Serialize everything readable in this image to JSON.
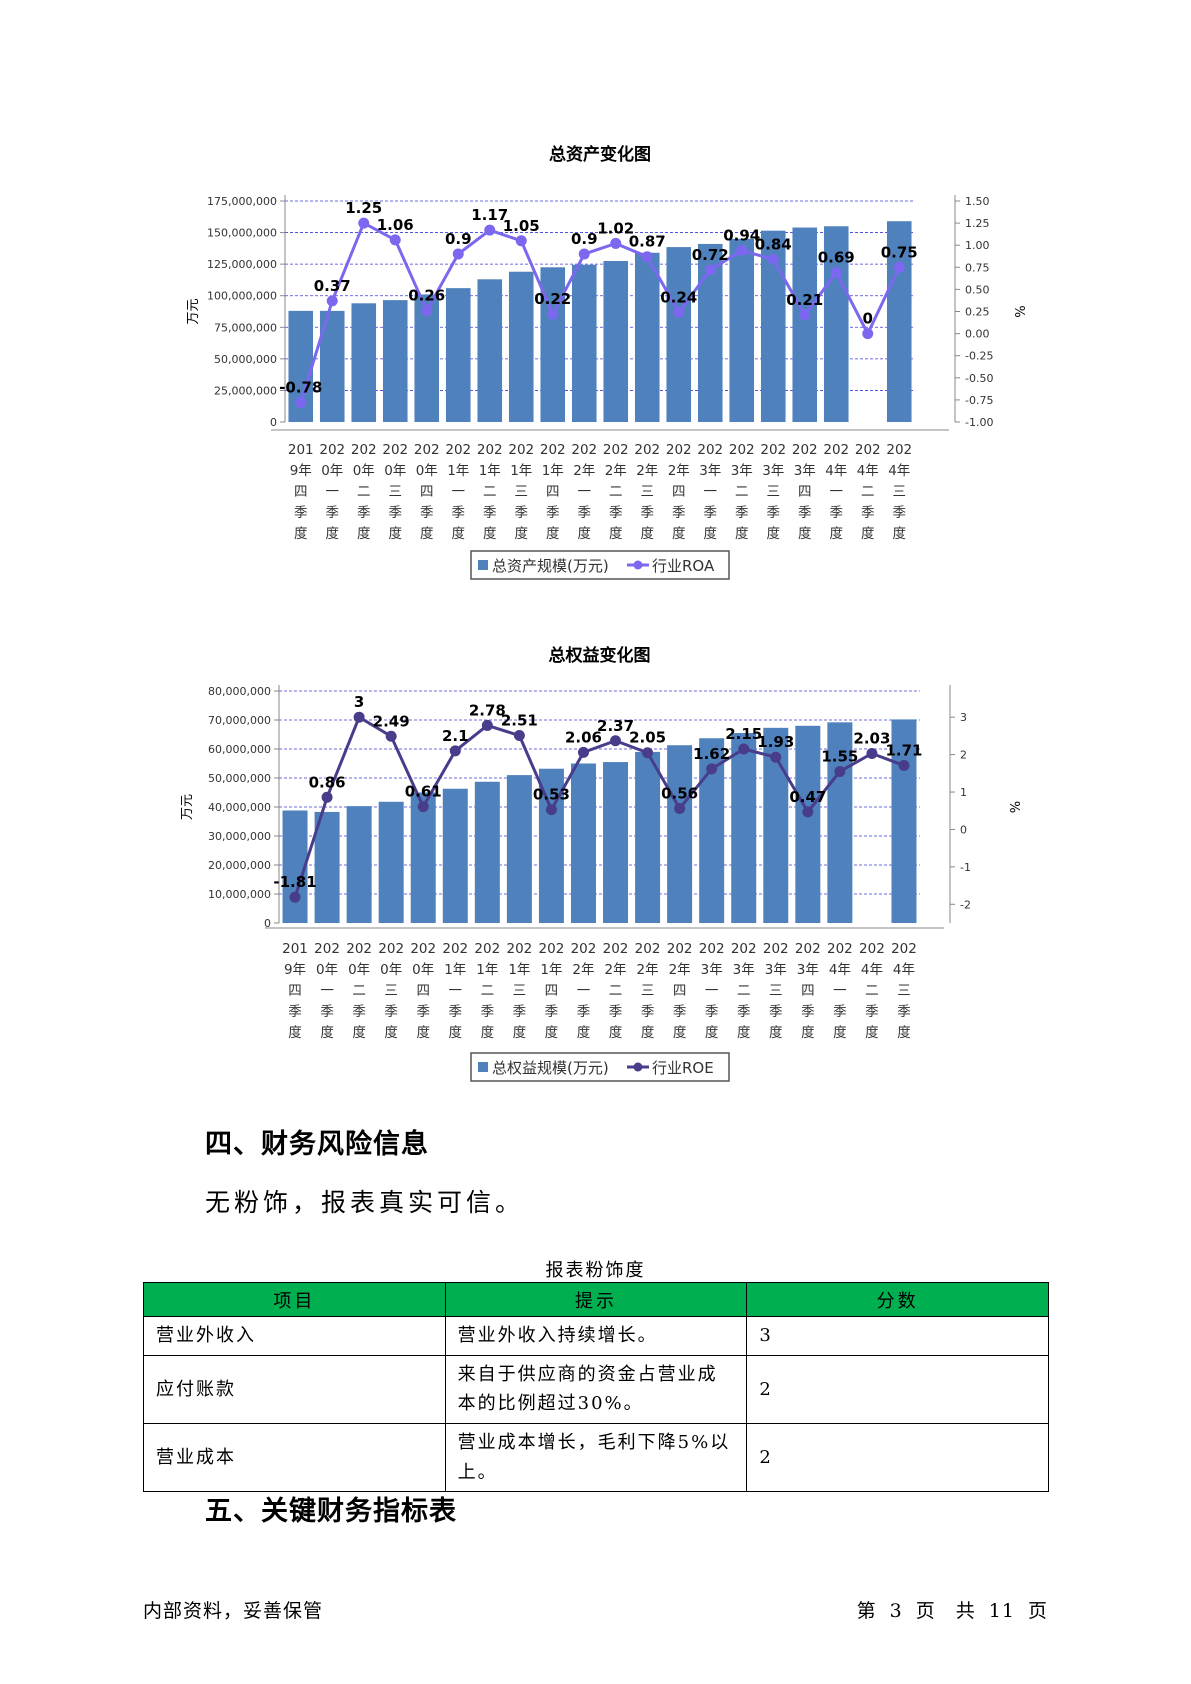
{
  "chart_data": [
    {
      "type": "bar",
      "title": "总资产变化图",
      "categories": [
        [
          "201",
          "9年",
          "四",
          "季",
          "度"
        ],
        [
          "202",
          "0年",
          "一",
          "季",
          "度"
        ],
        [
          "202",
          "0年",
          "二",
          "季",
          "度"
        ],
        [
          "202",
          "0年",
          "三",
          "季",
          "度"
        ],
        [
          "202",
          "0年",
          "四",
          "季",
          "度"
        ],
        [
          "202",
          "1年",
          "一",
          "季",
          "度"
        ],
        [
          "202",
          "1年",
          "二",
          "季",
          "度"
        ],
        [
          "202",
          "1年",
          "三",
          "季",
          "度"
        ],
        [
          "202",
          "1年",
          "四",
          "季",
          "度"
        ],
        [
          "202",
          "2年",
          "一",
          "季",
          "度"
        ],
        [
          "202",
          "2年",
          "二",
          "季",
          "度"
        ],
        [
          "202",
          "2年",
          "三",
          "季",
          "度"
        ],
        [
          "202",
          "2年",
          "四",
          "季",
          "度"
        ],
        [
          "202",
          "3年",
          "一",
          "季",
          "度"
        ],
        [
          "202",
          "3年",
          "二",
          "季",
          "度"
        ],
        [
          "202",
          "3年",
          "三",
          "季",
          "度"
        ],
        [
          "202",
          "3年",
          "四",
          "季",
          "度"
        ],
        [
          "202",
          "4年",
          "一",
          "季",
          "度"
        ],
        [
          "202",
          "4年",
          "二",
          "季",
          "度"
        ],
        [
          "202",
          "4年",
          "三",
          "季",
          "度"
        ]
      ],
      "series": [
        {
          "name": "总资产规模(万元)",
          "axis": "left",
          "kind": "bar",
          "color": "#4f81bd",
          "values": [
            88000000,
            88000000,
            94000000,
            96500000,
            101000000,
            106000000,
            113000000,
            119000000,
            122500000,
            124500000,
            127500000,
            134000000,
            138500000,
            141000000,
            145000000,
            151500000,
            154000000,
            155000000,
            0,
            159000000
          ]
        },
        {
          "name": "行业ROA",
          "axis": "right",
          "kind": "line",
          "color": "#7b68ee",
          "values": [
            -0.78,
            0.37,
            1.25,
            1.06,
            0.26,
            0.9,
            1.17,
            1.05,
            0.22,
            0.9,
            1.02,
            0.87,
            0.24,
            0.72,
            0.94,
            0.84,
            0.21,
            0.69,
            0,
            0.75
          ],
          "labels": [
            "-0.78",
            "0.37",
            "1.25",
            "1.06",
            "0.26",
            "0.9",
            "1.17",
            "1.05",
            "0.22",
            "0.9",
            "1.02",
            "0.87",
            "0.24",
            "0.72",
            "0.94",
            "0.84",
            "0.21",
            "0.69",
            "0",
            "0.75"
          ]
        }
      ],
      "ylabel": "万元",
      "y2label": "%",
      "ylim": [
        0,
        175000000
      ],
      "yticks": [
        "175,000,000",
        "150,000,000",
        "125,000,000",
        "100,000,000",
        "75,000,000",
        "50,000,000",
        "25,000,000",
        "0"
      ],
      "yticks_values": [
        175000000,
        150000000,
        125000000,
        100000000,
        75000000,
        50000000,
        25000000,
        0
      ],
      "y2lim": [
        -1.0,
        1.5
      ],
      "y2ticks": [
        "1.50",
        "1.25",
        "1.00",
        "0.75",
        "0.50",
        "0.25",
        "0.00",
        "-0.25",
        "-0.50",
        "-0.75",
        "-1.00"
      ],
      "y2ticks_values": [
        1.5,
        1.25,
        1.0,
        0.75,
        0.5,
        0.25,
        0,
        -0.25,
        -0.5,
        -0.75,
        -1.0
      ],
      "grid": true,
      "legend": "bottom",
      "legend_labels": [
        "总资产规模(万元)",
        "行业ROA"
      ]
    },
    {
      "type": "bar",
      "title": "总权益变化图",
      "categories": [
        [
          "201",
          "9年",
          "四",
          "季",
          "度"
        ],
        [
          "202",
          "0年",
          "一",
          "季",
          "度"
        ],
        [
          "202",
          "0年",
          "二",
          "季",
          "度"
        ],
        [
          "202",
          "0年",
          "三",
          "季",
          "度"
        ],
        [
          "202",
          "0年",
          "四",
          "季",
          "度"
        ],
        [
          "202",
          "1年",
          "一",
          "季",
          "度"
        ],
        [
          "202",
          "1年",
          "二",
          "季",
          "度"
        ],
        [
          "202",
          "1年",
          "三",
          "季",
          "度"
        ],
        [
          "202",
          "1年",
          "四",
          "季",
          "度"
        ],
        [
          "202",
          "2年",
          "一",
          "季",
          "度"
        ],
        [
          "202",
          "2年",
          "二",
          "季",
          "度"
        ],
        [
          "202",
          "2年",
          "三",
          "季",
          "度"
        ],
        [
          "202",
          "2年",
          "四",
          "季",
          "度"
        ],
        [
          "202",
          "3年",
          "一",
          "季",
          "度"
        ],
        [
          "202",
          "3年",
          "二",
          "季",
          "度"
        ],
        [
          "202",
          "3年",
          "三",
          "季",
          "度"
        ],
        [
          "202",
          "3年",
          "四",
          "季",
          "度"
        ],
        [
          "202",
          "4年",
          "一",
          "季",
          "度"
        ],
        [
          "202",
          "4年",
          "二",
          "季",
          "度"
        ],
        [
          "202",
          "4年",
          "三",
          "季",
          "度"
        ]
      ],
      "series": [
        {
          "name": "总权益规模(万元)",
          "axis": "left",
          "kind": "bar",
          "color": "#4f81bd",
          "values": [
            38800000,
            38300000,
            40300000,
            41800000,
            45000000,
            46300000,
            48700000,
            51000000,
            53200000,
            55000000,
            55500000,
            59000000,
            61300000,
            63700000,
            65500000,
            67300000,
            68000000,
            69200000,
            0,
            70200000
          ]
        },
        {
          "name": "行业ROE",
          "axis": "right",
          "kind": "line",
          "color": "#483d8b",
          "values": [
            -1.81,
            0.86,
            3,
            2.49,
            0.61,
            2.1,
            2.78,
            2.51,
            0.53,
            2.06,
            2.37,
            2.05,
            0.56,
            1.62,
            2.15,
            1.93,
            0.47,
            1.55,
            2.03,
            1.71
          ],
          "labels": [
            "-1.81",
            "0.86",
            "3",
            "2.49",
            "0.61",
            "2.1",
            "2.78",
            "2.51",
            "0.53",
            "2.06",
            "2.37",
            "2.05",
            "0.56",
            "1.62",
            "2.15",
            "1.93",
            "0.47",
            "1.55",
            "2.03",
            "1.71"
          ]
        }
      ],
      "ylabel": "万元",
      "y2label": "%",
      "ylim": [
        0,
        80000000
      ],
      "yticks": [
        "80,000,000",
        "70,000,000",
        "60,000,000",
        "50,000,000",
        "40,000,000",
        "30,000,000",
        "20,000,000",
        "10,000,000",
        "0"
      ],
      "yticks_values": [
        80000000,
        70000000,
        60000000,
        50000000,
        40000000,
        30000000,
        20000000,
        10000000,
        0
      ],
      "y2lim": [
        -2.5,
        3.7
      ],
      "y2ticks": [
        "3",
        "2",
        "1",
        "0",
        "-1",
        "-2"
      ],
      "y2ticks_values": [
        3,
        2,
        1,
        0,
        -1,
        -2
      ],
      "grid": true,
      "legend": "bottom",
      "legend_labels": [
        "总权益规模(万元)",
        "行业ROE"
      ]
    }
  ],
  "section4": {
    "heading": "四、财务风险信息",
    "text": "无粉饰，报表真实可信。"
  },
  "table": {
    "caption": "报表粉饰度",
    "headers": [
      "项目",
      "提示",
      "分数"
    ],
    "header_color": "#00b050",
    "rows": [
      {
        "item": "营业外收入",
        "hint": "营业外收入持续增长。",
        "score": "3"
      },
      {
        "item": "应付账款",
        "hint": "来自于供应商的资金占营业成本的比例超过30%。",
        "score": "2"
      },
      {
        "item": "营业成本",
        "hint": "营业成本增长，毛利下降5%以上。",
        "score": "2"
      }
    ]
  },
  "section5": {
    "heading": "五、关键财务指标表"
  },
  "footer": {
    "left": "内部资料，妥善保管",
    "right": "第 3 页　共 11 页"
  }
}
